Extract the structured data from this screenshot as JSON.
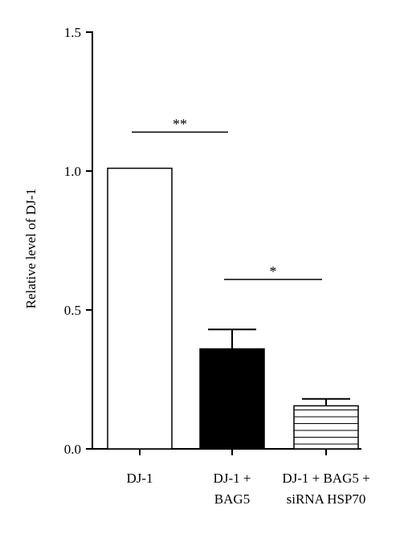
{
  "chart_data": {
    "type": "bar",
    "title": "",
    "xlabel": "",
    "ylabel": "Relative level of DJ-1",
    "ylim": [
      0,
      1.5
    ],
    "yticks": [
      "0.0",
      "0.5",
      "1.0",
      "1.5"
    ],
    "grid": false,
    "legend": "none",
    "categories": [
      [
        "DJ-1"
      ],
      [
        "DJ-1 +",
        "BAG5"
      ],
      [
        "DJ-1 + BAG5 +",
        "siRNA HSP70"
      ]
    ],
    "values": [
      1.01,
      0.36,
      0.155
    ],
    "errors": [
      0,
      0.07,
      0.025
    ],
    "bar_styles": [
      "open",
      "solid",
      "horizontal-stripes"
    ],
    "colors": {
      "outline": "#000000",
      "solid_fill": "#000000",
      "open_fill": "#ffffff"
    },
    "significance": [
      {
        "from": 0,
        "to": 1,
        "label": "**",
        "y": 1.14
      },
      {
        "from": 1,
        "to": 2,
        "label": "*",
        "y": 0.61
      }
    ]
  }
}
